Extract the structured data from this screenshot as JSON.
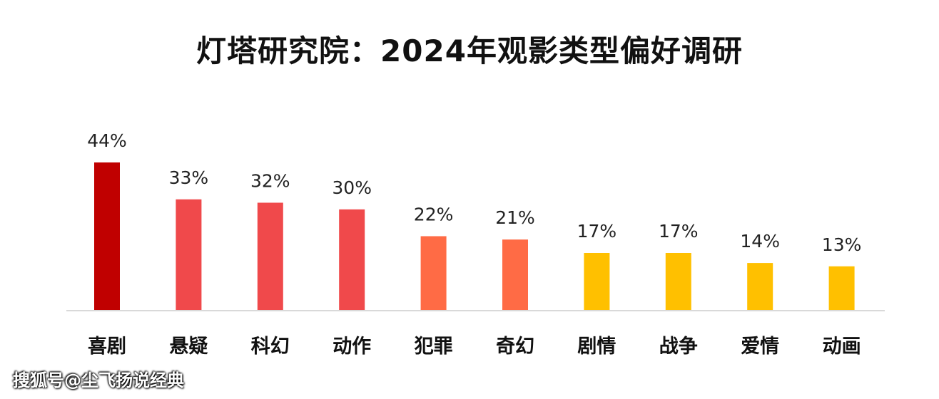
{
  "chart_data": {
    "type": "bar",
    "title": "灯塔研究院：2024年观影类型偏好调研",
    "categories": [
      "喜剧",
      "悬疑",
      "科幻",
      "动作",
      "犯罪",
      "奇幻",
      "剧情",
      "战争",
      "爱情",
      "动画"
    ],
    "values": [
      44,
      33,
      32,
      30,
      22,
      21,
      17,
      17,
      14,
      13
    ],
    "value_labels": [
      "44%",
      "33%",
      "32%",
      "30%",
      "22%",
      "21%",
      "17%",
      "17%",
      "14%",
      "13%"
    ],
    "colors": [
      "#c00000",
      "#f0494b",
      "#f0494b",
      "#f0494b",
      "#ff6b45",
      "#ff6b45",
      "#ffc000",
      "#ffc000",
      "#ffc000",
      "#ffc000"
    ],
    "ylim": [
      0,
      44
    ],
    "xlabel": "",
    "ylabel": "",
    "grid": false,
    "legend": "none",
    "baseline_color": "#d9d9d9"
  },
  "watermark": "搜狐号@尘飞扬说经典"
}
